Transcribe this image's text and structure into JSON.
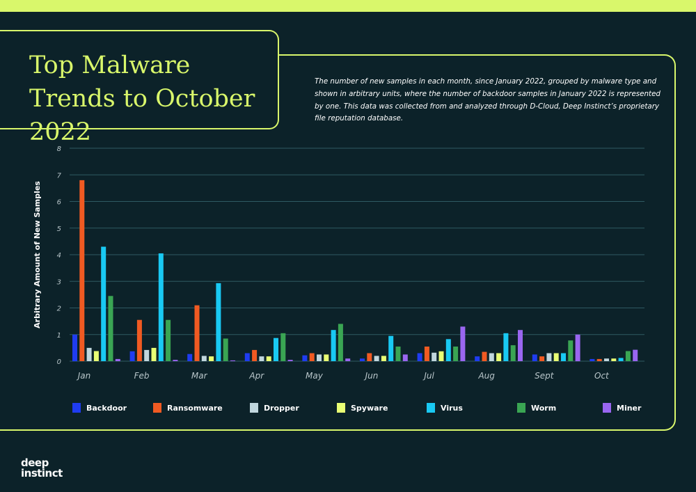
{
  "header": {
    "title": "Top Malware Trends to October 2022",
    "description": "The number of new samples in each month, since January 2022, grouped by malware type and shown in arbitrary units, where the number of backdoor samples in January 2022 is represented by one. This data was collected from and analyzed through D-Cloud, Deep Instinct’s proprietary file reputation database."
  },
  "logo": {
    "line1": "deep",
    "line2": "instinct"
  },
  "colors": {
    "background": "#0c2229",
    "accent": "#d9f76b",
    "grid": "#2f5a63"
  },
  "chart_data": {
    "type": "bar",
    "title": "Top Malware Trends to October 2022",
    "xlabel": "",
    "ylabel": "Arbitrary Amount of New Samples",
    "ylim": [
      0,
      8
    ],
    "yticks": [
      "0",
      "1",
      "2",
      "3",
      "4",
      "5",
      "6",
      "7",
      "8"
    ],
    "grid": true,
    "legend_position": "bottom",
    "categories": [
      "Jan",
      "Feb",
      "Mar",
      "Apr",
      "May",
      "Jun",
      "Jul",
      "Aug",
      "Sept",
      "Oct"
    ],
    "series": [
      {
        "name": "Backdoor",
        "color": "#1f3cf0",
        "values": [
          1.0,
          0.37,
          0.27,
          0.3,
          0.22,
          0.1,
          0.3,
          0.18,
          0.25,
          0.08
        ]
      },
      {
        "name": "Ransomware",
        "color": "#f05a22",
        "values": [
          6.8,
          1.55,
          2.1,
          0.42,
          0.3,
          0.3,
          0.55,
          0.35,
          0.18,
          0.08
        ]
      },
      {
        "name": "Dropper",
        "color": "#c0d6dd",
        "values": [
          0.5,
          0.42,
          0.2,
          0.18,
          0.25,
          0.2,
          0.32,
          0.3,
          0.3,
          0.1
        ]
      },
      {
        "name": "Spyware",
        "color": "#e9ff74",
        "values": [
          0.38,
          0.5,
          0.18,
          0.18,
          0.25,
          0.2,
          0.37,
          0.3,
          0.3,
          0.1
        ]
      },
      {
        "name": "Virus",
        "color": "#19c9f3",
        "values": [
          4.3,
          4.05,
          2.93,
          0.87,
          1.17,
          0.95,
          0.83,
          1.05,
          0.3,
          0.12
        ]
      },
      {
        "name": "Worm",
        "color": "#3aa553",
        "values": [
          2.45,
          1.55,
          0.85,
          1.05,
          1.4,
          0.55,
          0.55,
          0.6,
          0.78,
          0.38
        ]
      },
      {
        "name": "Miner",
        "color": "#9a66f0",
        "values": [
          0.08,
          0.05,
          0.03,
          0.05,
          0.1,
          0.25,
          1.3,
          1.17,
          1.0,
          0.43
        ]
      }
    ]
  }
}
